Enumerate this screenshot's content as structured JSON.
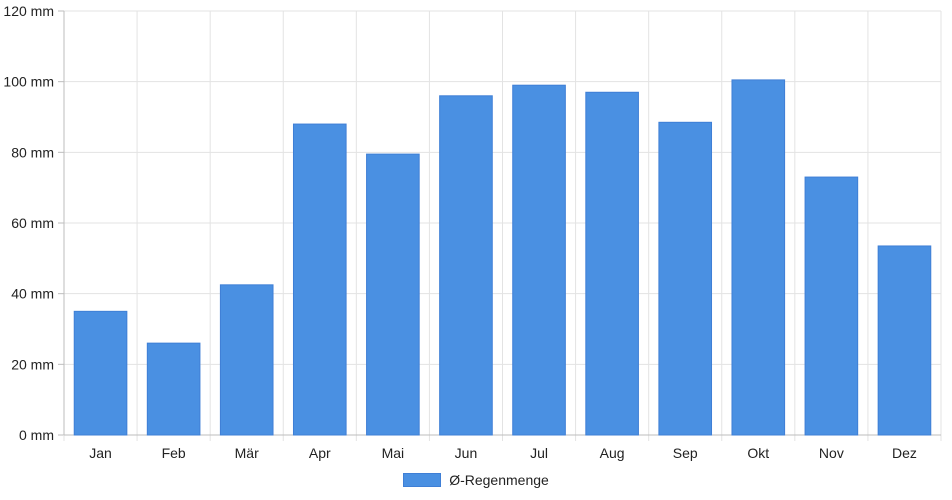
{
  "colors": {
    "bar": "#4a90e2",
    "bar_border": "#3f7fd6",
    "grid": "#e3e3e3",
    "axis": "#bdbdbd",
    "text": "#222222"
  },
  "chart_data": {
    "type": "bar",
    "title": "",
    "xlabel": "",
    "ylabel": "",
    "categories": [
      "Jan",
      "Feb",
      "Mär",
      "Apr",
      "Mai",
      "Jun",
      "Jul",
      "Aug",
      "Sep",
      "Okt",
      "Nov",
      "Dez"
    ],
    "series": [
      {
        "name": "Ø-Regenmenge",
        "values": [
          35,
          26,
          42.5,
          88,
          79.5,
          96,
          99,
          97,
          88.5,
          100.5,
          73,
          53.5
        ]
      }
    ],
    "ylim": [
      0,
      120
    ],
    "y_ticks": [
      0,
      20,
      40,
      60,
      80,
      100,
      120
    ],
    "y_tick_labels": [
      "0 mm",
      "20 mm",
      "40 mm",
      "60 mm",
      "80 mm",
      "100 mm",
      "120 mm"
    ],
    "grid": true,
    "legend_position": "bottom"
  }
}
